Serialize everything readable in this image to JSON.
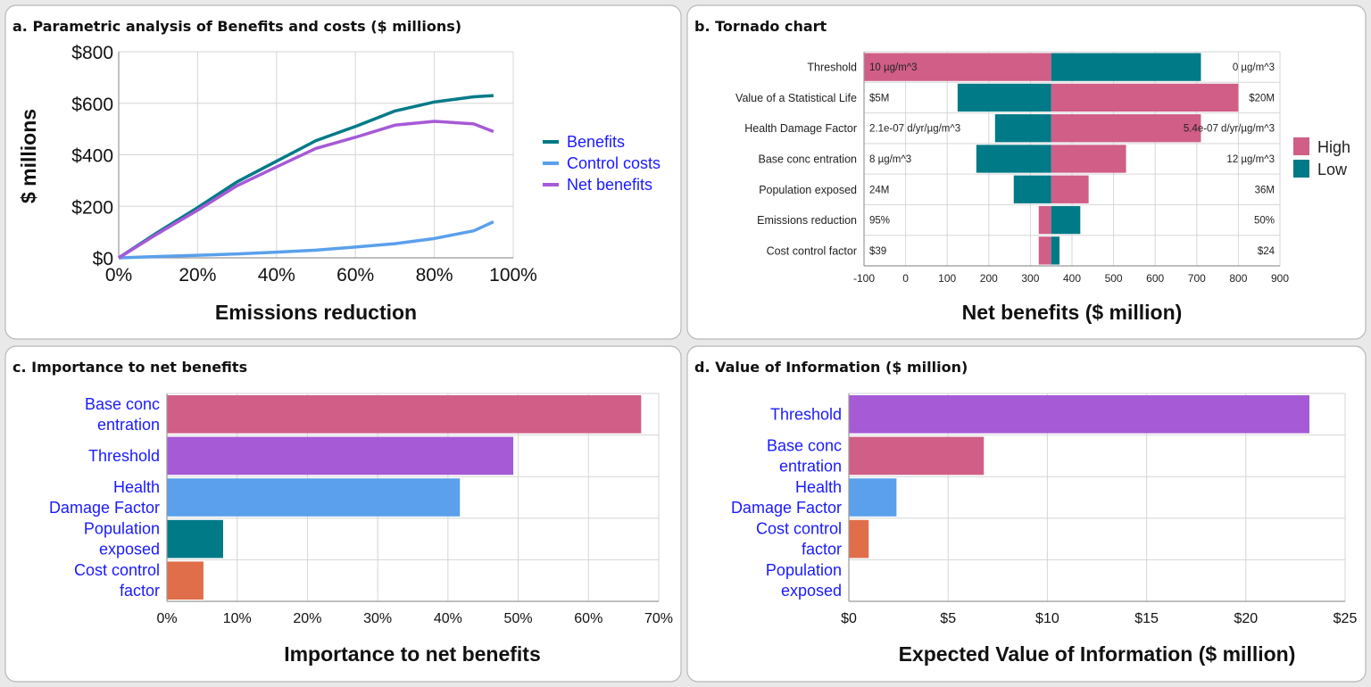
{
  "colors": {
    "pink": "#d05e87",
    "teal": "#007a87",
    "purple": "#a65ad6",
    "blue": "#5aa0ec",
    "orange": "#e06e4a"
  },
  "chart_data": [
    {
      "type": "line",
      "title": "a. Parametric analysis of Benefits and costs ($ millions)",
      "xlabel": "Emissions reduction",
      "ylabel": "$ millions",
      "xlim": [
        0,
        100
      ],
      "ylim": [
        0,
        800
      ],
      "xticks": [
        "0%",
        "20%",
        "40%",
        "60%",
        "80%",
        "100%"
      ],
      "yticks": [
        "$0",
        "$200",
        "$400",
        "$600",
        "$800"
      ],
      "grid": true,
      "legend_position": "right",
      "x": [
        0,
        10,
        20,
        30,
        40,
        50,
        60,
        70,
        80,
        90,
        95
      ],
      "series": [
        {
          "name": "Benefits",
          "color": "#007a87",
          "values": [
            0,
            100,
            195,
            295,
            375,
            455,
            510,
            570,
            605,
            625,
            630
          ]
        },
        {
          "name": "Control costs",
          "color": "#5aa0ec",
          "values": [
            0,
            5,
            10,
            15,
            22,
            30,
            42,
            55,
            75,
            105,
            140
          ]
        },
        {
          "name": "Net benefits",
          "color": "#a65ad6",
          "values": [
            0,
            95,
            185,
            280,
            353,
            425,
            468,
            515,
            530,
            520,
            490
          ]
        }
      ]
    },
    {
      "type": "bar",
      "subtype": "tornado",
      "title": "b. Tornado chart",
      "xlabel": "Net benefits ($ million)",
      "xlim": [
        -100,
        900
      ],
      "base": 350,
      "xticks": [
        "-100",
        "0",
        "100",
        "200",
        "300",
        "400",
        "500",
        "600",
        "700",
        "800",
        "900"
      ],
      "grid": true,
      "legend_position": "right",
      "legend": [
        {
          "name": "High",
          "color": "#d05e87"
        },
        {
          "name": "Low",
          "color": "#007a87"
        }
      ],
      "categories": [
        "Threshold",
        "Value of a Statistical Life",
        "Health Damage Factor",
        "Base conc entration",
        "Population exposed",
        "Emissions reduction",
        "Cost control factor"
      ],
      "high_values": [
        -100,
        800,
        710,
        530,
        440,
        320,
        320
      ],
      "low_values": [
        710,
        125,
        215,
        170,
        260,
        420,
        370
      ],
      "left_labels": [
        "10 µg/m^3",
        "$5M",
        "2.1e-07 d/yr/µg/m^3",
        "8 µg/m^3",
        "24M",
        "95%",
        "$39"
      ],
      "right_labels": [
        "0 µg/m^3",
        "$20M",
        "5.4e-07 d/yr/µg/m^3",
        "12 µg/m^3",
        "36M",
        "50%",
        "$24"
      ]
    },
    {
      "type": "bar",
      "title": "c. Importance to net benefits",
      "xlabel": "Importance to net benefits",
      "xlim": [
        0,
        70
      ],
      "xticks": [
        "0%",
        "10%",
        "20%",
        "30%",
        "40%",
        "50%",
        "60%",
        "70%"
      ],
      "grid": true,
      "categories": [
        [
          "Base conc",
          "entration"
        ],
        [
          "Threshold"
        ],
        [
          "Health",
          "Damage Factor"
        ],
        [
          "Population",
          "exposed"
        ],
        [
          "Cost control",
          "factor"
        ]
      ],
      "values": [
        67.5,
        49.3,
        41.7,
        8.0,
        5.2
      ],
      "bar_colors": [
        "#d05e87",
        "#a65ad6",
        "#5aa0ec",
        "#007a87",
        "#e06e4a"
      ]
    },
    {
      "type": "bar",
      "title": "d. Value of Information ($ million)",
      "xlabel": "Expected Value of Information ($ million)",
      "xlim": [
        0,
        25
      ],
      "xticks": [
        "$0",
        "$5",
        "$10",
        "$15",
        "$20",
        "$25"
      ],
      "grid": true,
      "categories": [
        [
          "Threshold"
        ],
        [
          "Base conc",
          "entration"
        ],
        [
          "Health",
          "Damage Factor"
        ],
        [
          "Cost control",
          "factor"
        ],
        [
          "Population",
          "exposed"
        ]
      ],
      "values": [
        23.2,
        6.8,
        2.4,
        1.0,
        0.0
      ],
      "bar_colors": [
        "#a65ad6",
        "#d05e87",
        "#5aa0ec",
        "#e06e4a",
        "#007a87"
      ]
    }
  ]
}
